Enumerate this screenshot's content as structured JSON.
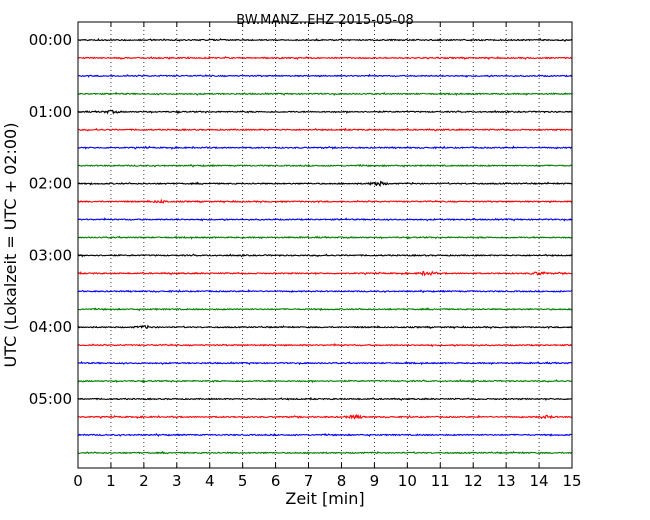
{
  "chart_data": {
    "type": "line",
    "title": "BW.MANZ..EHZ 2015-05-08",
    "xlabel": "Zeit  [min]",
    "ylabel": "UTC (Lokalzeit = UTC + 02:00)",
    "xlim": [
      0,
      15
    ],
    "x_ticks": [
      "0",
      "1",
      "2",
      "3",
      "4",
      "5",
      "6",
      "7",
      "8",
      "9",
      "10",
      "11",
      "12",
      "13",
      "14",
      "15"
    ],
    "y_ticks": [
      "00:00",
      "01:00",
      "02:00",
      "03:00",
      "04:00",
      "05:00"
    ],
    "grid": "vertical dotted lines at each minute",
    "trace_interval_min": 15,
    "trace_count": 24,
    "series_colors": [
      "#000000",
      "#ff0000",
      "#0000ff",
      "#008000"
    ],
    "events": [
      {
        "trace": 8,
        "x_min": 9.1,
        "amp": 2.2
      },
      {
        "trace": 13,
        "x_min": 10.6,
        "amp": 1.8
      },
      {
        "trace": 13,
        "x_min": 14.0,
        "amp": 1.3
      },
      {
        "trace": 21,
        "x_min": 8.4,
        "amp": 1.5
      },
      {
        "trace": 21,
        "x_min": 14.2,
        "amp": 1.2
      },
      {
        "trace": 16,
        "x_min": 2.0,
        "amp": 1.1
      },
      {
        "trace": 4,
        "x_min": 1.0,
        "amp": 1.1
      },
      {
        "trace": 9,
        "x_min": 2.5,
        "amp": 1.1
      }
    ]
  }
}
